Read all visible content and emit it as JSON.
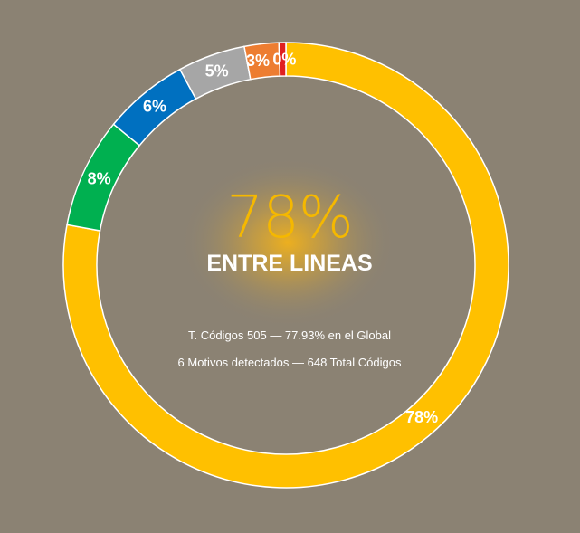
{
  "colors": {
    "background": "#8b8273",
    "glow": "#f2b21a",
    "center_value": "#f5b800"
  },
  "center": {
    "value": "78%",
    "title": "ENTRE LINEAS",
    "line1": "T. Códigos 505 — 77.93% en el Global",
    "line2": "6 Motivos detectados — 648 Total Códigos"
  },
  "chart_data": {
    "type": "pie",
    "style": "donut",
    "slices": [
      {
        "label": "78%",
        "value": 77.93,
        "color": "#ffc000"
      },
      {
        "label": "8%",
        "value": 8.0,
        "color": "#00b050"
      },
      {
        "label": "6%",
        "value": 6.2,
        "color": "#0070c0"
      },
      {
        "label": "5%",
        "value": 4.9,
        "color": "#a6a6a6"
      },
      {
        "label": "3%",
        "value": 2.5,
        "color": "#ed7d31"
      },
      {
        "label": "0%",
        "value": 0.5,
        "color": "#e02020"
      }
    ]
  }
}
